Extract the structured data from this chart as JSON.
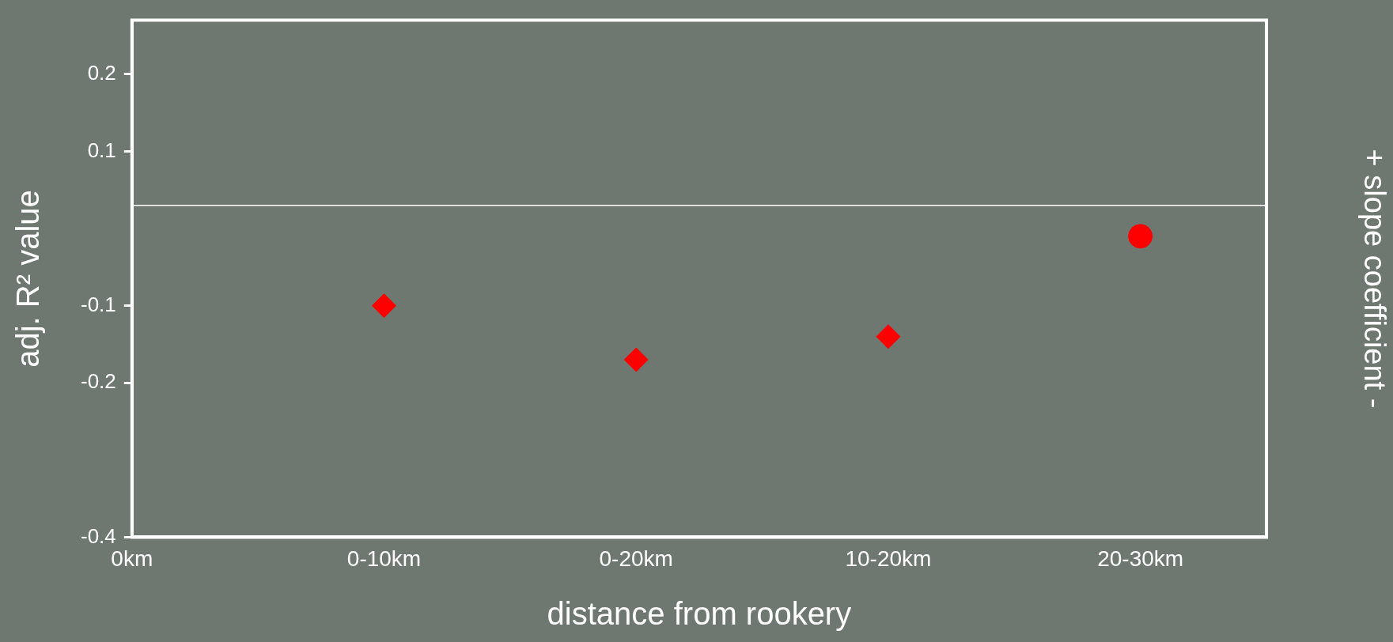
{
  "chart_data": {
    "type": "scatter",
    "xlabel": "distance from rookery",
    "ylabel": "adj. R² value",
    "y2label": "+ slope coefficient -",
    "categories": [
      "0km",
      "0-10km",
      "0-20km",
      "10-20km",
      "20-30km"
    ],
    "series": [
      {
        "color": "#ff0000",
        "marker": "diamond",
        "values": [
          null,
          -0.1,
          -0.17,
          -0.14,
          null
        ]
      },
      {
        "color": "#ff0000",
        "marker": "circle",
        "values": [
          null,
          null,
          null,
          null,
          -0.01
        ]
      }
    ],
    "ylim": [
      -0.4,
      0.27
    ],
    "yticks": [
      -0.4,
      -0.2,
      -0.1,
      0.1,
      0.2
    ],
    "ref_lines": [
      {
        "axis": "y",
        "value": 0.03,
        "color": "#ffffff"
      }
    ],
    "grid": false,
    "legend": false
  }
}
